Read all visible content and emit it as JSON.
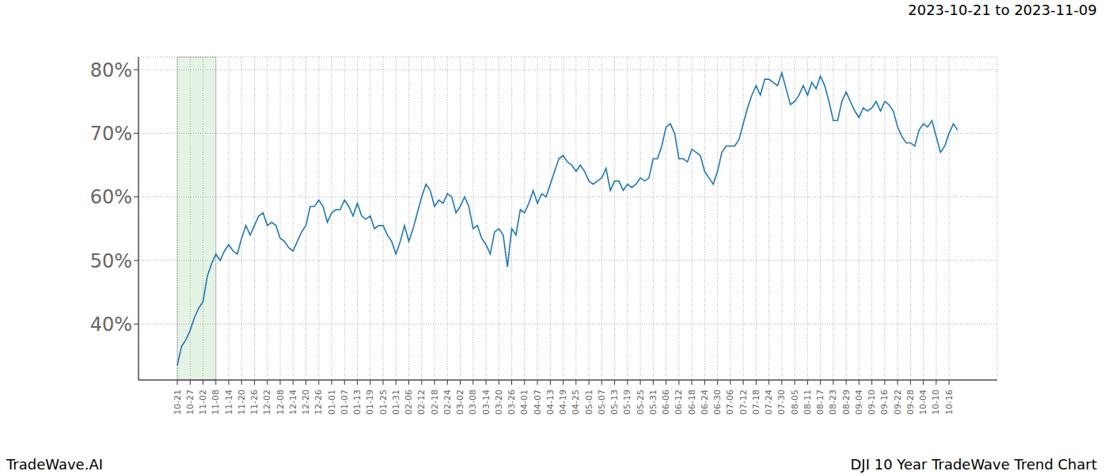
{
  "chart_data": {
    "type": "line",
    "title": "2023-10-21 to 2023-11-09",
    "annotations": [
      "TradeWave.AI",
      "DJI 10 Year TradeWave Trend Chart"
    ],
    "categories": [
      "10-21",
      null,
      null,
      "10-27",
      null,
      null,
      "11-02",
      null,
      null,
      "11-08",
      null,
      null,
      "11-14",
      null,
      null,
      "11-20",
      null,
      null,
      "11-26",
      null,
      null,
      "12-02",
      null,
      null,
      "12-08",
      null,
      null,
      "12-14",
      null,
      null,
      "12-20",
      null,
      null,
      "12-26",
      null,
      null,
      "01-01",
      null,
      null,
      "01-07",
      null,
      null,
      "01-13",
      null,
      null,
      "01-19",
      null,
      null,
      "01-25",
      null,
      null,
      "01-31",
      null,
      null,
      "02-06",
      null,
      null,
      "02-12",
      null,
      null,
      "02-18",
      null,
      null,
      "02-24",
      null,
      null,
      "03-02",
      null,
      null,
      "03-08",
      null,
      null,
      "03-14",
      null,
      null,
      "03-20",
      null,
      null,
      "03-26",
      null,
      null,
      "04-01",
      null,
      null,
      "04-07",
      null,
      null,
      "04-13",
      null,
      null,
      "04-19",
      null,
      null,
      "04-25",
      null,
      null,
      "05-01",
      null,
      null,
      "05-07",
      null,
      null,
      "05-13",
      null,
      null,
      "05-19",
      null,
      null,
      "05-25",
      null,
      null,
      "05-31",
      null,
      null,
      "06-06",
      null,
      null,
      "06-12",
      null,
      null,
      "06-18",
      null,
      null,
      "06-24",
      null,
      null,
      "06-30",
      null,
      null,
      "07-06",
      null,
      null,
      "07-12",
      null,
      null,
      "07-18",
      null,
      null,
      "07-24",
      null,
      null,
      "07-30",
      null,
      null,
      "08-05",
      null,
      null,
      "08-11",
      null,
      null,
      "08-17",
      null,
      null,
      "08-23",
      null,
      null,
      "08-29",
      null,
      null,
      "09-04",
      null,
      null,
      "09-10",
      null,
      null,
      "09-16",
      null,
      null,
      "09-22",
      null,
      null,
      "09-28",
      null,
      null,
      "10-04",
      null,
      null,
      "10-10",
      null,
      null,
      "10-16",
      null,
      null
    ],
    "values": [
      33.5,
      36.5,
      37.5,
      39,
      41,
      42.5,
      43.5,
      47.5,
      49.5,
      51,
      50,
      51.5,
      52.5,
      51.5,
      51,
      53.5,
      55.5,
      54,
      55.5,
      57,
      57.5,
      55.5,
      56,
      55.5,
      53.5,
      53,
      52,
      51.5,
      53,
      54.5,
      55.5,
      58.5,
      58.5,
      59.5,
      58.5,
      56,
      57.5,
      58,
      58,
      59.5,
      58.5,
      57,
      59,
      57,
      56.5,
      57,
      55,
      55.5,
      55.5,
      54,
      53,
      51,
      53,
      55.5,
      53,
      55,
      57.5,
      60,
      62,
      61,
      58.5,
      59.5,
      59,
      60.5,
      60,
      57.5,
      58.5,
      60,
      58.5,
      55,
      55.5,
      53.5,
      52.5,
      51,
      54.5,
      55,
      54,
      49,
      55,
      54,
      58,
      57.5,
      59,
      61,
      59,
      60.5,
      60,
      62,
      64,
      66,
      66.5,
      65.5,
      65,
      64,
      65,
      64,
      62.5,
      62,
      62.5,
      63,
      64.5,
      61,
      62.5,
      62.5,
      61,
      62,
      61.5,
      62,
      63,
      62.5,
      63,
      66,
      66,
      68,
      71,
      71.5,
      70,
      66,
      66,
      65.5,
      67.5,
      67,
      66.5,
      64,
      63,
      62,
      64,
      67,
      68,
      68,
      68,
      69,
      71.5,
      74,
      76,
      77.5,
      76,
      78.5,
      78.5,
      78,
      77.5,
      79.5,
      77,
      74.5,
      75,
      76,
      77.5,
      76,
      78,
      77,
      79,
      77.5,
      75,
      72,
      72,
      75,
      76.5,
      75,
      73.5,
      72.5,
      74,
      73.5,
      74,
      75,
      73.5,
      75,
      74.5,
      73.5,
      71,
      69.5,
      68.5,
      68.5,
      68,
      70.5,
      71.5,
      71,
      72,
      69.5,
      67,
      68,
      70,
      71.5,
      70.5
    ],
    "color": "#1f77b4",
    "ylim": [
      31.2,
      82
    ],
    "yticks": [
      {
        "value": 40,
        "label": "40%"
      },
      {
        "value": 50,
        "label": "50%"
      },
      {
        "value": 60,
        "label": "60%"
      },
      {
        "value": 70,
        "label": "70%"
      },
      {
        "value": 80,
        "label": "80%"
      }
    ],
    "grid": true
  }
}
